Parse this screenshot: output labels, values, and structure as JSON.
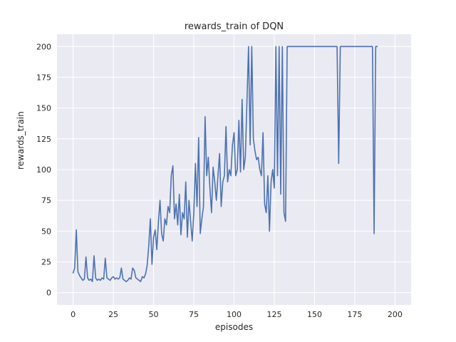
{
  "chart": {
    "title": "rewards_train of DQN",
    "xlabel": "episodes",
    "ylabel": "rewards_train"
  },
  "chart_data": {
    "type": "line",
    "title": "rewards_train of DQN",
    "xlabel": "episodes",
    "ylabel": "rewards_train",
    "xlim": [
      -10,
      210
    ],
    "ylim": [
      -10,
      210
    ],
    "xticks": [
      0,
      25,
      50,
      75,
      100,
      125,
      150,
      175,
      200
    ],
    "yticks": [
      0,
      25,
      50,
      75,
      100,
      125,
      150,
      175,
      200
    ],
    "grid": true,
    "legend": false,
    "plot_background": "#eaeaf2",
    "grid_color": "#ffffff",
    "line_color": "#4c72b0",
    "series": [
      {
        "name": "rewards_train",
        "x_is_index": true,
        "y": [
          16,
          20,
          51,
          17,
          14,
          12,
          10,
          11,
          29,
          12,
          10,
          11,
          9,
          30,
          12,
          10,
          11,
          10,
          12,
          11,
          28,
          12,
          11,
          10,
          12,
          13,
          11,
          12,
          11,
          12,
          20,
          11,
          10,
          9,
          10,
          12,
          11,
          20,
          18,
          12,
          11,
          10,
          9,
          13,
          12,
          15,
          22,
          38,
          60,
          23,
          45,
          51,
          35,
          57,
          75,
          48,
          42,
          60,
          55,
          70,
          65,
          95,
          103,
          60,
          72,
          55,
          80,
          47,
          65,
          60,
          90,
          45,
          75,
          58,
          42,
          65,
          105,
          70,
          126,
          48,
          60,
          70,
          143,
          95,
          110,
          85,
          65,
          102,
          90,
          75,
          95,
          113,
          70,
          90,
          95,
          135,
          90,
          100,
          95,
          120,
          130,
          95,
          100,
          140,
          98,
          157,
          100,
          110,
          155,
          200,
          120,
          200,
          125,
          115,
          108,
          110,
          100,
          95,
          130,
          72,
          65,
          95,
          50,
          90,
          100,
          85,
          200,
          95,
          200,
          80,
          200,
          65,
          58,
          200,
          200,
          200,
          200,
          200,
          200,
          200,
          200,
          200,
          200,
          200,
          200,
          200,
          200,
          200,
          200,
          200,
          200,
          200,
          200,
          200,
          200,
          200,
          200,
          200,
          200,
          200,
          200,
          200,
          200,
          200,
          200,
          105,
          200,
          200,
          200,
          200,
          200,
          200,
          200,
          200,
          200,
          200,
          200,
          200,
          200,
          200,
          200,
          200,
          200,
          200,
          200,
          200,
          200,
          48,
          200,
          200
        ]
      }
    ]
  }
}
